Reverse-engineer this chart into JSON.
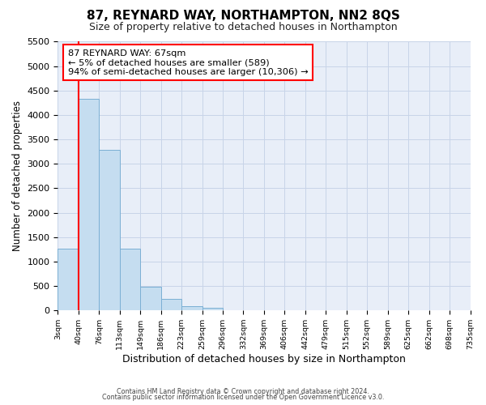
{
  "title": "87, REYNARD WAY, NORTHAMPTON, NN2 8QS",
  "subtitle": "Size of property relative to detached houses in Northampton",
  "xlabel": "Distribution of detached houses by size in Northampton",
  "ylabel": "Number of detached properties",
  "tick_labels": [
    "3sqm",
    "40sqm",
    "76sqm",
    "113sqm",
    "149sqm",
    "186sqm",
    "223sqm",
    "259sqm",
    "296sqm",
    "332sqm",
    "369sqm",
    "406sqm",
    "442sqm",
    "479sqm",
    "515sqm",
    "552sqm",
    "589sqm",
    "625sqm",
    "662sqm",
    "698sqm",
    "735sqm"
  ],
  "bar_color": "#c5ddf0",
  "bar_edge_color": "#7bafd4",
  "grid_color": "#c8d4e8",
  "bg_color": "#e8eef8",
  "ylim": [
    0,
    5500
  ],
  "yticks": [
    0,
    500,
    1000,
    1500,
    2000,
    2500,
    3000,
    3500,
    4000,
    4500,
    5000,
    5500
  ],
  "red_line_x": 1.0,
  "annotation_line1": "87 REYNARD WAY: 67sqm",
  "annotation_line2": "← 5% of detached houses are smaller (589)",
  "annotation_line3": "94% of semi-detached houses are larger (10,306) →",
  "footer1": "Contains HM Land Registry data © Crown copyright and database right 2024.",
  "footer2": "Contains public sector information licensed under the Open Government Licence v3.0.",
  "bar_heights": [
    1270,
    4330,
    3280,
    1270,
    480,
    230,
    90,
    55,
    0,
    0,
    0,
    0,
    0,
    0,
    0,
    0,
    0,
    0,
    0,
    0
  ]
}
